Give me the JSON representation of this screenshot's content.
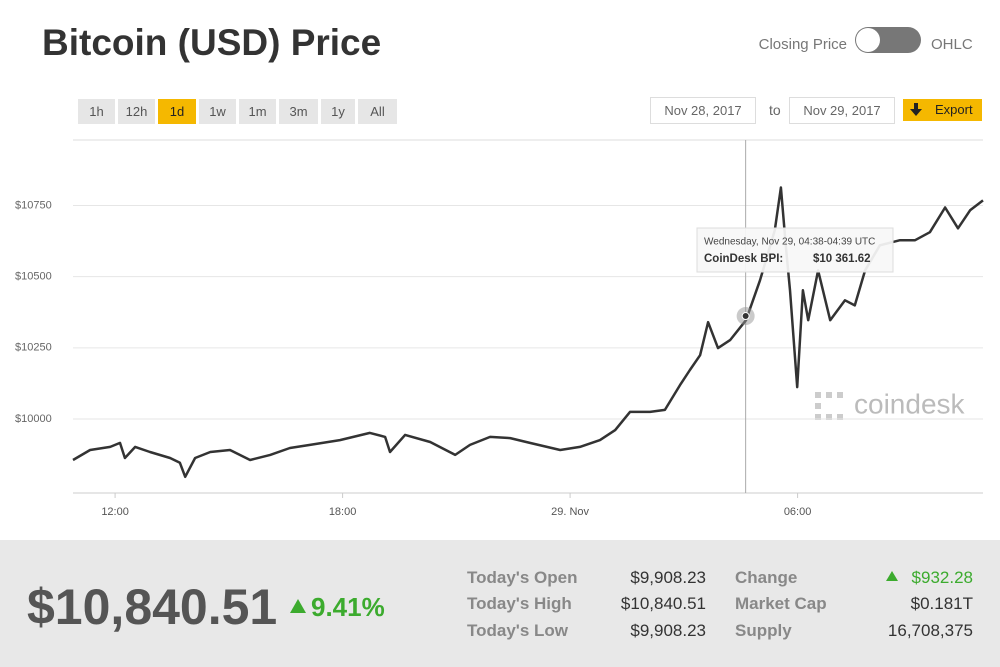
{
  "header": {
    "title": "Bitcoin (USD) Price",
    "toggle_left": "Closing Price",
    "toggle_right": "OHLC"
  },
  "ranges": [
    "1h",
    "12h",
    "1d",
    "1w",
    "1m",
    "3m",
    "1y",
    "All"
  ],
  "date_from": "Nov 28, 2017",
  "date_sep": "to",
  "date_to": "Nov 29, 2017",
  "export": "Export",
  "chart_data": {
    "type": "line",
    "x": [
      10.89,
      11.34,
      11.87,
      12.13,
      12.26,
      12.53,
      12.92,
      13.45,
      13.71,
      13.85,
      14.11,
      14.51,
      15.03,
      15.56,
      16.09,
      16.61,
      17.14,
      17.93,
      18.72,
      19.12,
      19.25,
      19.65,
      20.31,
      20.97,
      21.36,
      21.89,
      22.42,
      22.94,
      23.74,
      24.26,
      24.79,
      25.19,
      25.58,
      26.11,
      26.5,
      26.9,
      27.16,
      27.43,
      27.64,
      27.9,
      28.22,
      28.64,
      29.01,
      29.4,
      29.56,
      29.7,
      29.8,
      29.99,
      30.14,
      30.28,
      30.54,
      30.86,
      31.25,
      31.51,
      31.78,
      32.17,
      32.7,
      33.1,
      33.49,
      33.89,
      34.23,
      34.55,
      34.89
    ],
    "series": [
      {
        "color": "#333333",
        "values": [
          9856,
          9891,
          9902,
          9916,
          9863,
          9902,
          9884,
          9863,
          9846,
          9797,
          9863,
          9884,
          9891,
          9856,
          9874,
          9898,
          9909,
          9926,
          9951,
          9937,
          9884,
          9944,
          9919,
          9874,
          9909,
          9937,
          9933,
          9916,
          9891,
          9902,
          9926,
          9961,
          10025,
          10025,
          10032,
          10119,
          10172,
          10224,
          10340,
          10249,
          10277,
          10347,
          10487,
          10663,
          10813,
          10593,
          10452,
          10112,
          10452,
          10347,
          10522,
          10347,
          10417,
          10399,
          10522,
          10610,
          10628,
          10628,
          10656,
          10743,
          10670,
          10733,
          10768
        ]
      }
    ],
    "xlim": [
      10.89,
      34.89
    ],
    "xticks": [
      {
        "value": 12,
        "label": "12:00"
      },
      {
        "value": 18,
        "label": "18:00"
      },
      {
        "value": 24,
        "label": "29. Nov"
      },
      {
        "value": 30,
        "label": "06:00"
      }
    ],
    "ylim": [
      9740,
      10980
    ],
    "yticks": [
      {
        "value": 10000,
        "label": "$10000"
      },
      {
        "value": 10250,
        "label": "$10250"
      },
      {
        "value": 10500,
        "label": "$10500"
      },
      {
        "value": 10750,
        "label": "$10750"
      }
    ],
    "grid": true,
    "tooltip": {
      "x": 28.63,
      "y": 10361.62,
      "date": "Wednesday, Nov 29, 04:38-04:39 UTC",
      "name": "CoinDesk BPI:",
      "value_label": "$10 361.62"
    },
    "watermark": "coindesk"
  },
  "stats": {
    "price": "$10,840.51",
    "change_pct": "9.41%",
    "left": [
      [
        "Today's Open",
        "$9,908.23"
      ],
      [
        "Today's High",
        "$10,840.51"
      ],
      [
        "Today's Low",
        "$9,908.23"
      ]
    ],
    "right": [
      [
        "Change",
        "$932.28"
      ],
      [
        "Market Cap",
        "$0.181T"
      ],
      [
        "Supply",
        "16,708,375"
      ]
    ]
  }
}
